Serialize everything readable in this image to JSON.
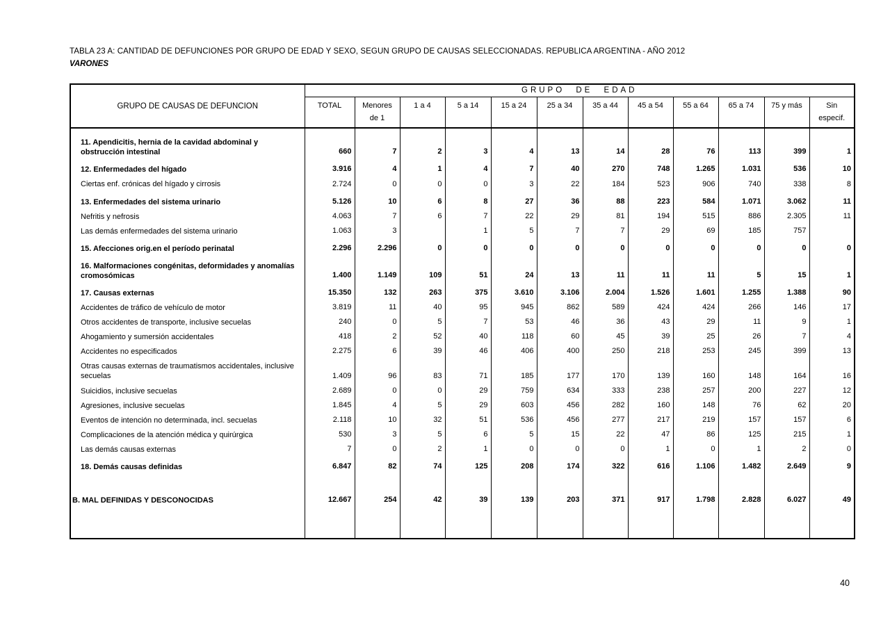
{
  "page": {
    "title": "TABLA 23 A: CANTIDAD DE DEFUNCIONES POR GRUPO DE EDAD Y SEXO,  SEGUN GRUPO DE CAUSAS SELECCIONADAS. REPUBLICA ARGENTINA - AÑO 2012",
    "subtitle": "VARONES",
    "page_number": "40"
  },
  "table": {
    "col1_header": "GRUPO DE CAUSAS DE DEFUNCION",
    "age_group_header": "GRUPO DE EDAD",
    "columns": [
      "TOTAL",
      "Menores\nde 1",
      "1 a 4",
      "5 a 14",
      "15 a 24",
      "25 a 34",
      "35 a 44",
      "45 a 54",
      "55 a 64",
      "65 a 74",
      "75 y más",
      "Sin\nespecif."
    ],
    "rows": [
      {
        "label": "11. Apendicitis, hernia de la cavidad abdominal y obstrucción intestinal",
        "bold": true,
        "values": [
          "660",
          "7",
          "2",
          "3",
          "4",
          "13",
          "14",
          "28",
          "76",
          "113",
          "399",
          "1"
        ]
      },
      {
        "label": "12. Enfermedades del hígado",
        "bold": true,
        "values": [
          "3.916",
          "4",
          "1",
          "4",
          "7",
          "40",
          "270",
          "748",
          "1.265",
          "1.031",
          "536",
          "10"
        ]
      },
      {
        "label": "Ciertas enf. crónicas del hígado y cirrosis",
        "bold": false,
        "values": [
          "2.724",
          "0",
          "0",
          "0",
          "3",
          "22",
          "184",
          "523",
          "906",
          "740",
          "338",
          "8"
        ]
      },
      {
        "label": "13. Enfermedades del sistema urinario",
        "bold": true,
        "values": [
          "5.126",
          "10",
          "6",
          "8",
          "27",
          "36",
          "88",
          "223",
          "584",
          "1.071",
          "3.062",
          "11"
        ]
      },
      {
        "label": "Nefritis y nefrosis",
        "bold": false,
        "values": [
          "4.063",
          "7",
          "6",
          "7",
          "22",
          "29",
          "81",
          "194",
          "515",
          "886",
          "2.305",
          "11"
        ]
      },
      {
        "label": "Las demás enfermedades del sistema urinario",
        "bold": false,
        "values": [
          "1.063",
          "3",
          "",
          "1",
          "5",
          "7",
          "7",
          "29",
          "69",
          "185",
          "757",
          ""
        ]
      },
      {
        "label": "15.  Afecciones orig.en  el período perinatal",
        "bold": true,
        "values": [
          "2.296",
          "2.296",
          "0",
          "0",
          "0",
          "0",
          "0",
          "0",
          "0",
          "0",
          "0",
          "0"
        ]
      },
      {
        "label": "16. Malformaciones congénitas, deformidades y anomalías cromosómicas",
        "bold": true,
        "values": [
          "1.400",
          "1.149",
          "109",
          "51",
          "24",
          "13",
          "11",
          "11",
          "11",
          "5",
          "15",
          "1"
        ]
      },
      {
        "label": "17. Causas externas",
        "bold": true,
        "values": [
          "15.350",
          "132",
          "263",
          "375",
          "3.610",
          "3.106",
          "2.004",
          "1.526",
          "1.601",
          "1.255",
          "1.388",
          "90"
        ]
      },
      {
        "label": "Accidentes de tráfico de vehículo de motor",
        "bold": false,
        "values": [
          "3.819",
          "11",
          "40",
          "95",
          "945",
          "862",
          "589",
          "424",
          "424",
          "266",
          "146",
          "17"
        ]
      },
      {
        "label": "Otros accidentes de transporte, inclusive secuelas",
        "bold": false,
        "values": [
          "240",
          "0",
          "5",
          "7",
          "53",
          "46",
          "36",
          "43",
          "29",
          "11",
          "9",
          "1"
        ]
      },
      {
        "label": "Ahogamiento y sumersión accidentales",
        "bold": false,
        "values": [
          "418",
          "2",
          "52",
          "40",
          "118",
          "60",
          "45",
          "39",
          "25",
          "26",
          "7",
          "4"
        ]
      },
      {
        "label": "Accidentes no especificados",
        "bold": false,
        "values": [
          "2.275",
          "6",
          "39",
          "46",
          "406",
          "400",
          "250",
          "218",
          "253",
          "245",
          "399",
          "13"
        ]
      },
      {
        "label": "Otras causas externas de  traumatismos accidentales, inclusive secuelas",
        "bold": false,
        "values": [
          "1.409",
          "96",
          "83",
          "71",
          "185",
          "177",
          "170",
          "139",
          "160",
          "148",
          "164",
          "16"
        ]
      },
      {
        "label": "Suicidios, inclusive secuelas",
        "bold": false,
        "values": [
          "2.689",
          "0",
          "0",
          "29",
          "759",
          "634",
          "333",
          "238",
          "257",
          "200",
          "227",
          "12"
        ]
      },
      {
        "label": "Agresiones, inclusive secuelas",
        "bold": false,
        "values": [
          "1.845",
          "4",
          "5",
          "29",
          "603",
          "456",
          "282",
          "160",
          "148",
          "76",
          "62",
          "20"
        ]
      },
      {
        "label": "Eventos de intención no determinada, incl. secuelas",
        "bold": false,
        "values": [
          "2.118",
          "10",
          "32",
          "51",
          "536",
          "456",
          "277",
          "217",
          "219",
          "157",
          "157",
          "6"
        ]
      },
      {
        "label": "Complicaciones de la atención médica y quirúrgica",
        "bold": false,
        "values": [
          "530",
          "3",
          "5",
          "6",
          "5",
          "15",
          "22",
          "47",
          "86",
          "125",
          "215",
          "1"
        ]
      },
      {
        "label": "Las demás causas externas",
        "bold": false,
        "values": [
          "7",
          "0",
          "2",
          "1",
          "0",
          "0",
          "0",
          "1",
          "0",
          "1",
          "2",
          "0"
        ]
      },
      {
        "label": "18. Demás causas definidas",
        "bold": true,
        "values": [
          "6.847",
          "82",
          "74",
          "125",
          "208",
          "174",
          "322",
          "616",
          "1.106",
          "1.482",
          "2.649",
          "9"
        ]
      },
      {
        "label": "B. MAL DEFINIDAS Y DESCONOCIDAS",
        "bold": true,
        "major": true,
        "values": [
          "12.667",
          "254",
          "42",
          "39",
          "139",
          "203",
          "371",
          "917",
          "1.798",
          "2.828",
          "6.027",
          "49"
        ]
      }
    ]
  }
}
